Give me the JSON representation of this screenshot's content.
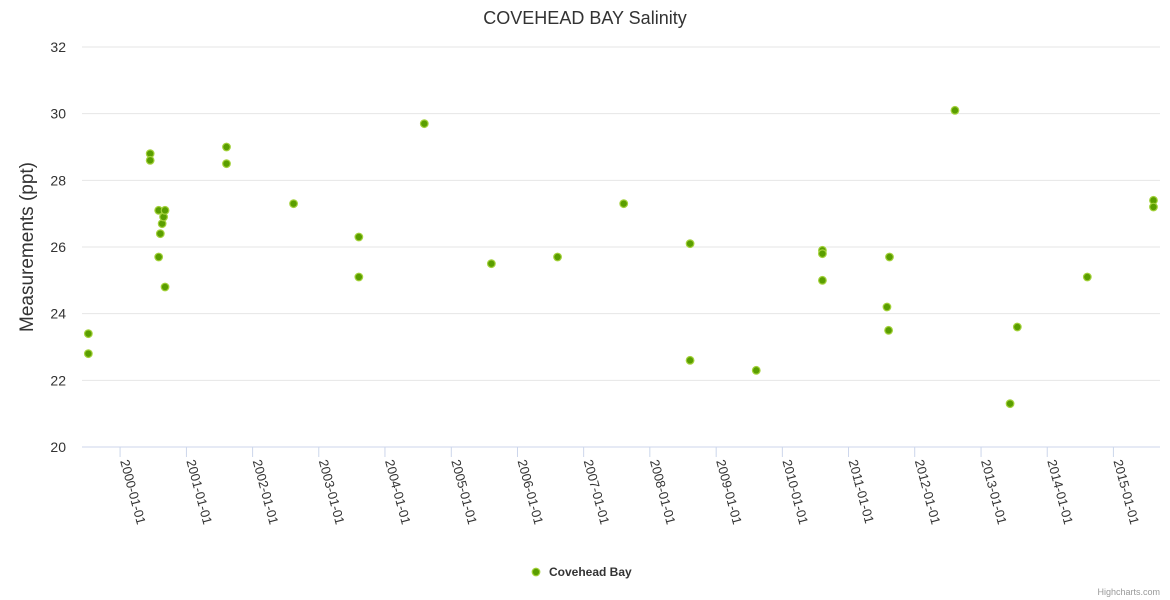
{
  "chart_data": {
    "type": "scatter",
    "title": "COVEHEAD BAY Salinity",
    "ylabel": "Measurements (ppt)",
    "xlabel": "",
    "ylim": [
      20,
      32
    ],
    "yticks": [
      "20",
      "22",
      "24",
      "26",
      "28",
      "30",
      "32"
    ],
    "xlim": [
      "1999-06-05",
      "2015-09-15"
    ],
    "xticks": [
      "2000-01-01",
      "2001-01-01",
      "2002-01-01",
      "2003-01-01",
      "2004-01-01",
      "2005-01-01",
      "2006-01-01",
      "2007-01-01",
      "2008-01-01",
      "2009-01-01",
      "2010-01-01",
      "2011-01-01",
      "2012-01-01",
      "2013-01-01",
      "2014-01-01",
      "2015-01-01"
    ],
    "grid": true,
    "legend_position": "bottom-center",
    "series": [
      {
        "name": "Covehead Bay",
        "color": "#5a9e00",
        "points": [
          {
            "x": "1999-07-10",
            "y": 23.4
          },
          {
            "x": "1999-07-10",
            "y": 22.8
          },
          {
            "x": "2000-06-15",
            "y": 28.8
          },
          {
            "x": "2000-06-15",
            "y": 28.6
          },
          {
            "x": "2000-08-01",
            "y": 27.1
          },
          {
            "x": "2000-08-01",
            "y": 25.7
          },
          {
            "x": "2000-08-10",
            "y": 26.4
          },
          {
            "x": "2000-08-20",
            "y": 26.7
          },
          {
            "x": "2000-08-28",
            "y": 26.9
          },
          {
            "x": "2000-09-05",
            "y": 27.1
          },
          {
            "x": "2000-09-05",
            "y": 24.8
          },
          {
            "x": "2001-08-10",
            "y": 29.0
          },
          {
            "x": "2001-08-10",
            "y": 28.5
          },
          {
            "x": "2002-08-15",
            "y": 27.3
          },
          {
            "x": "2003-08-10",
            "y": 26.3
          },
          {
            "x": "2003-08-10",
            "y": 25.1
          },
          {
            "x": "2004-08-05",
            "y": 29.7
          },
          {
            "x": "2005-08-10",
            "y": 25.5
          },
          {
            "x": "2006-08-10",
            "y": 25.7
          },
          {
            "x": "2007-08-10",
            "y": 27.3
          },
          {
            "x": "2008-08-10",
            "y": 26.1
          },
          {
            "x": "2008-08-10",
            "y": 22.6
          },
          {
            "x": "2009-08-10",
            "y": 22.3
          },
          {
            "x": "2010-08-10",
            "y": 25.9
          },
          {
            "x": "2010-08-10",
            "y": 25.8
          },
          {
            "x": "2010-08-10",
            "y": 25.0
          },
          {
            "x": "2011-08-01",
            "y": 24.2
          },
          {
            "x": "2011-08-10",
            "y": 23.5
          },
          {
            "x": "2011-08-15",
            "y": 25.7
          },
          {
            "x": "2012-08-10",
            "y": 30.1
          },
          {
            "x": "2013-06-10",
            "y": 21.3
          },
          {
            "x": "2013-07-20",
            "y": 23.6
          },
          {
            "x": "2014-08-10",
            "y": 25.1
          },
          {
            "x": "2015-08-10",
            "y": 27.4
          },
          {
            "x": "2015-08-10",
            "y": 27.2
          }
        ]
      }
    ]
  },
  "credits": "Highcharts.com"
}
